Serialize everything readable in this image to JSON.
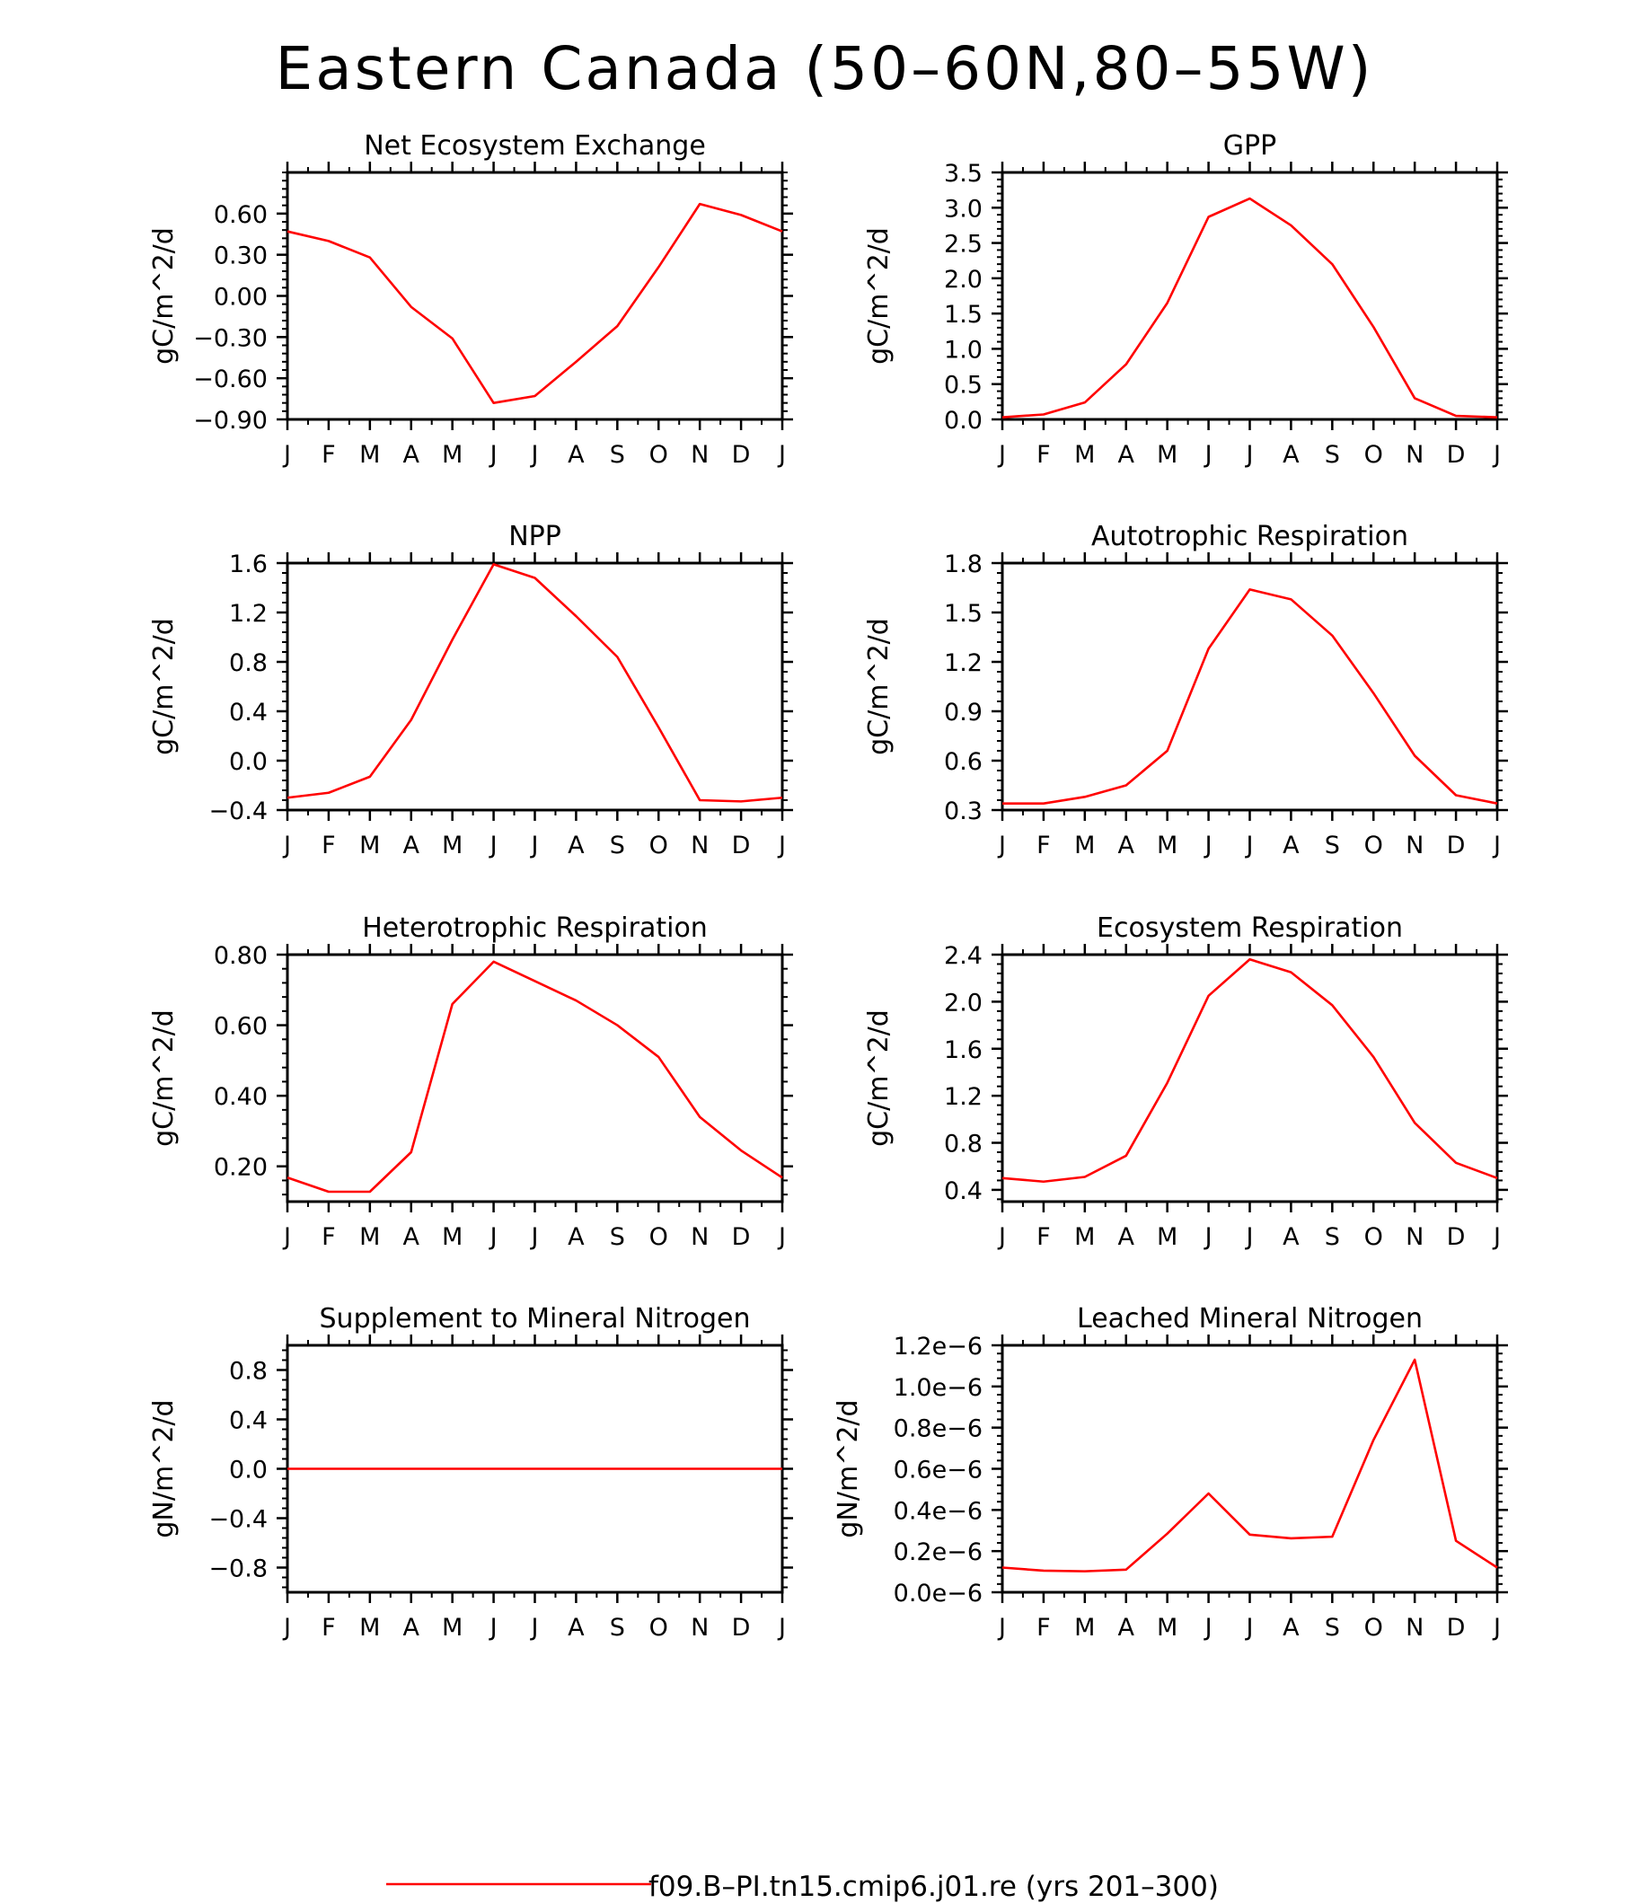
{
  "title": "Eastern Canada (50–60N,80–55W)",
  "legend": {
    "label": "f09.B–PI.tn15.cmip6.j01.re (yrs 201–300)",
    "color": "#ff0000"
  },
  "chart_data": [
    {
      "type": "line",
      "title": "Net Ecosystem Exchange",
      "ylabel": "gC/m^2/d",
      "x": [
        "J",
        "F",
        "M",
        "A",
        "M",
        "J",
        "J",
        "A",
        "S",
        "O",
        "N",
        "D",
        "J"
      ],
      "yticks": [
        "0.60",
        "0.30",
        "0.00",
        "−0.30",
        "−0.60",
        "−0.90"
      ],
      "ytick_values": [
        0.6,
        0.3,
        0.0,
        -0.3,
        -0.6,
        -0.9
      ],
      "ylim": [
        -0.9,
        0.9
      ],
      "series": [
        {
          "color": "#ff0000",
          "values": [
            0.47,
            0.4,
            0.28,
            -0.08,
            -0.31,
            -0.78,
            -0.73,
            -0.48,
            -0.22,
            0.21,
            0.67,
            0.59,
            0.47
          ]
        }
      ]
    },
    {
      "type": "line",
      "title": "GPP",
      "ylabel": "gC/m^2/d",
      "x": [
        "J",
        "F",
        "M",
        "A",
        "M",
        "J",
        "J",
        "A",
        "S",
        "O",
        "N",
        "D",
        "J"
      ],
      "yticks": [
        "3.5",
        "3.0",
        "2.5",
        "2.0",
        "1.5",
        "1.0",
        "0.5",
        "0.0"
      ],
      "ytick_values": [
        3.5,
        3.0,
        2.5,
        2.0,
        1.5,
        1.0,
        0.5,
        0.0
      ],
      "ylim": [
        0,
        3.5
      ],
      "series": [
        {
          "color": "#ff0000",
          "values": [
            0.03,
            0.07,
            0.24,
            0.78,
            1.65,
            2.87,
            3.13,
            2.75,
            2.2,
            1.31,
            0.3,
            0.05,
            0.03
          ]
        }
      ]
    },
    {
      "type": "line",
      "title": "NPP",
      "ylabel": "gC/m^2/d",
      "x": [
        "J",
        "F",
        "M",
        "A",
        "M",
        "J",
        "J",
        "A",
        "S",
        "O",
        "N",
        "D",
        "J"
      ],
      "yticks": [
        "1.6",
        "1.2",
        "0.8",
        "0.4",
        "0.0",
        "−0.4"
      ],
      "ytick_values": [
        1.6,
        1.2,
        0.8,
        0.4,
        0.0,
        -0.4
      ],
      "ylim": [
        -0.4,
        1.6
      ],
      "series": [
        {
          "color": "#ff0000",
          "values": [
            -0.3,
            -0.26,
            -0.13,
            0.33,
            0.98,
            1.59,
            1.48,
            1.17,
            0.84,
            0.27,
            -0.32,
            -0.33,
            -0.3
          ]
        }
      ]
    },
    {
      "type": "line",
      "title": "Autotrophic Respiration",
      "ylabel": "gC/m^2/d",
      "x": [
        "J",
        "F",
        "M",
        "A",
        "M",
        "J",
        "J",
        "A",
        "S",
        "O",
        "N",
        "D",
        "J"
      ],
      "yticks": [
        "1.8",
        "1.5",
        "1.2",
        "0.9",
        "0.6",
        "0.3"
      ],
      "ytick_values": [
        1.8,
        1.5,
        1.2,
        0.9,
        0.6,
        0.3
      ],
      "ylim": [
        0.3,
        1.8
      ],
      "series": [
        {
          "color": "#ff0000",
          "values": [
            0.34,
            0.34,
            0.38,
            0.45,
            0.66,
            1.28,
            1.64,
            1.58,
            1.36,
            1.01,
            0.63,
            0.39,
            0.34
          ]
        }
      ]
    },
    {
      "type": "line",
      "title": "Heterotrophic Respiration",
      "ylabel": "gC/m^2/d",
      "x": [
        "J",
        "F",
        "M",
        "A",
        "M",
        "J",
        "J",
        "A",
        "S",
        "O",
        "N",
        "D",
        "J"
      ],
      "yticks": [
        "0.80",
        "0.60",
        "0.40",
        "0.20"
      ],
      "ytick_values": [
        0.8,
        0.6,
        0.4,
        0.2
      ],
      "ylim": [
        0.1,
        0.8
      ],
      "series": [
        {
          "color": "#ff0000",
          "values": [
            0.168,
            0.128,
            0.128,
            0.24,
            0.66,
            0.78,
            0.725,
            0.67,
            0.6,
            0.51,
            0.34,
            0.245,
            0.168
          ]
        }
      ]
    },
    {
      "type": "line",
      "title": "Ecosystem Respiration",
      "ylabel": "gC/m^2/d",
      "x": [
        "J",
        "F",
        "M",
        "A",
        "M",
        "J",
        "J",
        "A",
        "S",
        "O",
        "N",
        "D",
        "J"
      ],
      "yticks": [
        "2.4",
        "2.0",
        "1.6",
        "1.2",
        "0.8",
        "0.4"
      ],
      "ytick_values": [
        2.4,
        2.0,
        1.6,
        1.2,
        0.8,
        0.4
      ],
      "ylim": [
        0.3,
        2.4
      ],
      "series": [
        {
          "color": "#ff0000",
          "values": [
            0.5,
            0.47,
            0.51,
            0.69,
            1.31,
            2.05,
            2.36,
            2.25,
            1.97,
            1.53,
            0.97,
            0.63,
            0.5
          ]
        }
      ]
    },
    {
      "type": "line",
      "title": "Supplement to Mineral Nitrogen",
      "ylabel": "gN/m^2/d",
      "x": [
        "J",
        "F",
        "M",
        "A",
        "M",
        "J",
        "J",
        "A",
        "S",
        "O",
        "N",
        "D",
        "J"
      ],
      "yticks": [
        "0.8",
        "0.4",
        "0.0",
        "−0.4",
        "−0.8"
      ],
      "ytick_values": [
        0.8,
        0.4,
        0.0,
        -0.4,
        -0.8
      ],
      "ylim": [
        -1.0,
        1.0
      ],
      "series": [
        {
          "color": "#ff0000",
          "values": [
            0,
            0,
            0,
            0,
            0,
            0,
            0,
            0,
            0,
            0,
            0,
            0,
            0
          ]
        }
      ]
    },
    {
      "type": "line",
      "title": "Leached Mineral Nitrogen",
      "ylabel": "gN/m^2/d",
      "x": [
        "J",
        "F",
        "M",
        "A",
        "M",
        "J",
        "J",
        "A",
        "S",
        "O",
        "N",
        "D",
        "J"
      ],
      "yticks": [
        "1.2e−6",
        "1.0e−6",
        "0.8e−6",
        "0.6e−6",
        "0.4e−6",
        "0.2e−6",
        "0.0e−6"
      ],
      "ytick_values": [
        1.2e-06,
        1e-06,
        8e-07,
        6e-07,
        4e-07,
        2e-07,
        0.0
      ],
      "ylim": [
        0,
        1.2e-06
      ],
      "series": [
        {
          "color": "#ff0000",
          "values": [
            1.2e-07,
            1.05e-07,
            1.02e-07,
            1.1e-07,
            2.85e-07,
            4.8e-07,
            2.8e-07,
            2.62e-07,
            2.7e-07,
            7.4e-07,
            1.13e-06,
            2.5e-07,
            1.2e-07
          ]
        }
      ]
    }
  ]
}
